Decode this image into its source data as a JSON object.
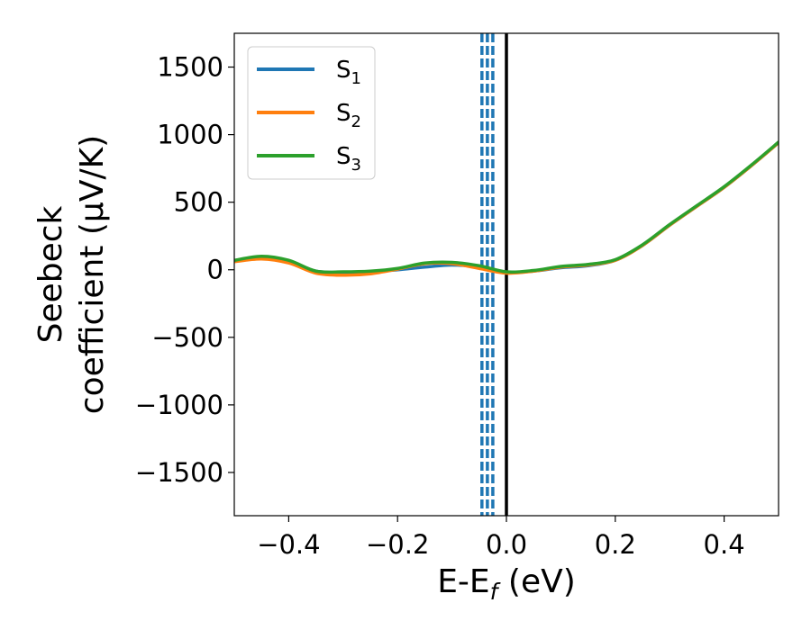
{
  "chart_data": {
    "type": "line",
    "title": "",
    "xlabel": "E-E_f (eV)",
    "ylabel_line1": "Seebeck",
    "ylabel_line2": "coefficient  (μV/K)",
    "xlim": [
      -0.5,
      0.5
    ],
    "ylim": [
      -1820,
      1750
    ],
    "xticks": [
      -0.4,
      -0.2,
      0.0,
      0.2,
      0.4
    ],
    "xtick_labels": [
      "−0.4",
      "−0.2",
      "0.0",
      "0.2",
      "0.4"
    ],
    "yticks": [
      -1500,
      -1000,
      -500,
      0,
      500,
      1000,
      1500
    ],
    "ytick_labels": [
      "−1500",
      "−1000",
      "−500",
      "0",
      "500",
      "1000",
      "1500"
    ],
    "grid": false,
    "legend_position": "top-left",
    "vertical_lines": [
      {
        "x": 0.0,
        "color": "#000000",
        "style": "solid"
      },
      {
        "x": -0.045,
        "color": "#1f77b4",
        "style": "dashed"
      },
      {
        "x": -0.035,
        "color": "#1f77b4",
        "style": "dashed"
      },
      {
        "x": -0.025,
        "color": "#1f77b4",
        "style": "dashed"
      }
    ],
    "series": [
      {
        "name": "S",
        "subscript": "1",
        "color": "#1f77b4",
        "x": [
          -0.5,
          -0.45,
          -0.4,
          -0.35,
          -0.3,
          -0.25,
          -0.2,
          -0.15,
          -0.1,
          -0.05,
          0.0,
          0.05,
          0.1,
          0.15,
          0.2,
          0.25,
          0.3,
          0.35,
          0.4,
          0.45,
          0.5
        ],
        "y": [
          65,
          90,
          60,
          -10,
          -20,
          -15,
          0,
          20,
          35,
          20,
          -20,
          -10,
          15,
          30,
          70,
          180,
          330,
          470,
          610,
          770,
          940
        ]
      },
      {
        "name": "S",
        "subscript": "2",
        "color": "#ff7f0e",
        "x": [
          -0.5,
          -0.45,
          -0.4,
          -0.35,
          -0.3,
          -0.25,
          -0.2,
          -0.15,
          -0.1,
          -0.05,
          0.0,
          0.05,
          0.1,
          0.15,
          0.2,
          0.25,
          0.3,
          0.35,
          0.4,
          0.45,
          0.5
        ],
        "y": [
          60,
          80,
          50,
          -25,
          -40,
          -30,
          5,
          45,
          45,
          10,
          -25,
          -10,
          20,
          35,
          70,
          180,
          330,
          470,
          610,
          770,
          940
        ]
      },
      {
        "name": "S",
        "subscript": "3",
        "color": "#2ca02c",
        "x": [
          -0.5,
          -0.45,
          -0.4,
          -0.35,
          -0.3,
          -0.25,
          -0.2,
          -0.15,
          -0.1,
          -0.05,
          0.0,
          0.05,
          0.1,
          0.15,
          0.2,
          0.25,
          0.3,
          0.35,
          0.4,
          0.45,
          0.5
        ],
        "y": [
          70,
          100,
          70,
          -10,
          -15,
          -10,
          10,
          50,
          55,
          30,
          -15,
          -5,
          25,
          40,
          75,
          185,
          335,
          475,
          615,
          775,
          945
        ]
      }
    ]
  }
}
